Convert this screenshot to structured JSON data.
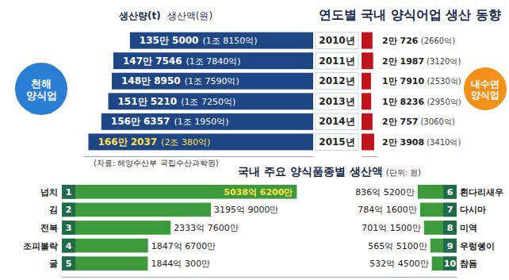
{
  "chart_data": [
    {
      "type": "bar",
      "orientation": "horizontal",
      "title": "연도별 국내 양식어업 생산 동향",
      "headers": [
        "생산량(t)",
        "생산액(원)"
      ],
      "note": "(자료: 해양수산부 국립수산과학원)",
      "categories": [
        "2010년",
        "2011년",
        "2012년",
        "2013년",
        "2014년",
        "2015년"
      ],
      "data_labels": true,
      "tick_labels": "y",
      "series": [
        {
          "name": "천해양식업",
          "color": "#1f4685",
          "xlim": [
            0,
            1700000
          ],
          "values": [
            1355000,
            1477546,
            1488950,
            1515210,
            1566357,
            1662037
          ],
          "value_labels": [
            "135만 5000",
            "147만 7546",
            "148만 8950",
            "151만 5210",
            "156만 6357",
            "166만 2037"
          ],
          "amount_labels": [
            "(1조 8150억)",
            "(1조 7840억)",
            "(1조 7590억)",
            "(1조 7250억)",
            "(1조 1950억)",
            "(2조 380억)"
          ]
        },
        {
          "name": "내수면양식업",
          "color": "#c0141c",
          "xlim": [
            0,
            30000
          ],
          "values": [
            20726,
            21987,
            17910,
            18236,
            20757,
            23908
          ],
          "value_labels": [
            "2만 726",
            "2만 1987",
            "1만 7910",
            "1만 8236",
            "2만 757",
            "2만 3908"
          ],
          "amount_labels": [
            "(2660억)",
            "(3120억)",
            "(2530억)",
            "(2950억)",
            "(3060억)",
            "(3410억)"
          ]
        }
      ]
    },
    {
      "type": "bar",
      "orientation": "horizontal",
      "title": "국내 주요 양식품종별 생산액",
      "subtitle": "(단위: 원)",
      "categories": [
        "넙치",
        "김",
        "전복",
        "조피볼락",
        "굴",
        "흰다리새우",
        "다시마",
        "미역",
        "우렁쉥이",
        "참돔"
      ],
      "ranks": [
        1,
        2,
        3,
        4,
        5,
        6,
        7,
        8,
        9,
        10
      ],
      "values": [
        503862000000,
        319590000000,
        233376000000,
        184767000000,
        184403000000,
        83652000000,
        78416000000,
        70115000000,
        56551000000,
        53245000000
      ],
      "value_labels": [
        "5038억 6200만",
        "3195억 9000만",
        "2333억 7600만",
        "1847억 6700만",
        "1844억 300만",
        "836억 5200만",
        "784억 1600만",
        "701억 1500만",
        "565억 5100만",
        "532억 4500만"
      ],
      "color": "#3d9a3a",
      "xlim": [
        0,
        510000000000
      ],
      "data_labels": true,
      "tick_labels": "y"
    }
  ]
}
